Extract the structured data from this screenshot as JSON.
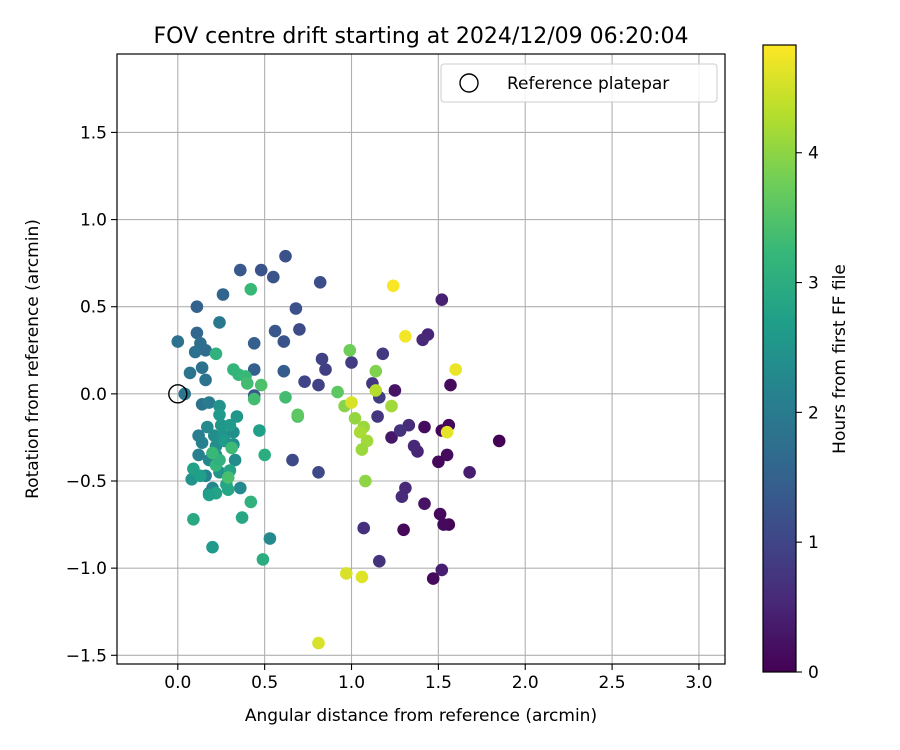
{
  "chart_data": {
    "type": "scatter",
    "title": "FOV centre drift starting at 2024/12/09 06:20:04",
    "xlabel": "Angular distance from reference (arcmin)",
    "ylabel": "Rotation from reference (arcmin)",
    "xlim": [
      -0.35,
      3.15
    ],
    "ylim": [
      -1.55,
      1.95
    ],
    "x_ticks": [
      0.0,
      0.5,
      1.0,
      1.5,
      2.0,
      2.5,
      3.0
    ],
    "x_tick_labels": [
      "0.0",
      "0.5",
      "1.0",
      "1.5",
      "2.0",
      "2.5",
      "3.0"
    ],
    "y_ticks": [
      -1.5,
      -1.0,
      -0.5,
      0.0,
      0.5,
      1.0,
      1.5
    ],
    "y_tick_labels": [
      "−1.5",
      "−1.0",
      "−0.5",
      "0.0",
      "0.5",
      "1.0",
      "1.5"
    ],
    "grid": true,
    "legend": {
      "placement": "top-right",
      "entries": [
        "Reference platepar"
      ]
    },
    "reference_point": {
      "x": 0.0,
      "y": 0.0,
      "label": "Reference platepar"
    },
    "colorbar": {
      "label": "Hours from first FF file",
      "min": 0,
      "max": 4.83,
      "ticks": [
        0,
        1,
        2,
        3,
        4
      ],
      "tick_labels": [
        "0",
        "1",
        "2",
        "3",
        "4"
      ],
      "colormap": "viridis"
    },
    "points_xyh": [
      [
        1.85,
        -0.27,
        0.02
      ],
      [
        1.52,
        -0.21,
        0.05
      ],
      [
        1.56,
        -0.18,
        0.08
      ],
      [
        1.5,
        -0.39,
        0.1
      ],
      [
        1.56,
        -0.75,
        0.05
      ],
      [
        1.51,
        -0.69,
        0.1
      ],
      [
        1.53,
        -0.75,
        0.12
      ],
      [
        1.47,
        -1.06,
        0.12
      ],
      [
        1.3,
        -0.78,
        0.1
      ],
      [
        1.55,
        -0.35,
        0.12
      ],
      [
        1.42,
        -0.19,
        0.15
      ],
      [
        1.57,
        0.05,
        0.15
      ],
      [
        1.42,
        -0.63,
        0.25
      ],
      [
        1.52,
        -1.01,
        0.4
      ],
      [
        1.68,
        -0.45,
        0.4
      ],
      [
        1.52,
        0.54,
        0.45
      ],
      [
        1.44,
        0.34,
        0.5
      ],
      [
        1.41,
        0.31,
        0.55
      ],
      [
        1.25,
        0.02,
        0.25
      ],
      [
        1.23,
        -0.25,
        0.3
      ],
      [
        1.29,
        -0.59,
        0.6
      ],
      [
        1.31,
        -0.54,
        0.55
      ],
      [
        1.38,
        -0.33,
        0.5
      ],
      [
        1.36,
        -0.3,
        0.55
      ],
      [
        1.33,
        -0.18,
        0.6
      ],
      [
        1.28,
        -0.21,
        0.7
      ],
      [
        1.07,
        -0.77,
        0.65
      ],
      [
        1.16,
        -0.96,
        0.7
      ],
      [
        1.15,
        -0.13,
        0.75
      ],
      [
        1.12,
        0.06,
        0.75
      ],
      [
        1.18,
        0.23,
        0.8
      ],
      [
        1.16,
        -0.02,
        0.85
      ],
      [
        1.0,
        0.18,
        0.85
      ],
      [
        0.85,
        0.14,
        0.9
      ],
      [
        0.83,
        0.2,
        0.95
      ],
      [
        0.81,
        0.05,
        0.95
      ],
      [
        0.73,
        0.07,
        1.0
      ],
      [
        0.66,
        -0.38,
        1.05
      ],
      [
        0.81,
        -0.45,
        1.05
      ],
      [
        0.7,
        0.37,
        1.1
      ],
      [
        0.82,
        0.64,
        1.15
      ],
      [
        0.68,
        0.49,
        1.2
      ],
      [
        0.62,
        0.79,
        1.2
      ],
      [
        0.55,
        0.67,
        1.25
      ],
      [
        0.48,
        0.71,
        1.25
      ],
      [
        0.36,
        0.71,
        1.35
      ],
      [
        0.56,
        0.36,
        1.3
      ],
      [
        0.61,
        0.3,
        1.25
      ],
      [
        0.44,
        0.29,
        1.45
      ],
      [
        0.61,
        0.13,
        1.4
      ],
      [
        0.44,
        0.14,
        1.45
      ],
      [
        0.44,
        -0.01,
        1.3
      ],
      [
        0.11,
        0.5,
        1.5
      ],
      [
        0.26,
        0.57,
        1.55
      ],
      [
        0.11,
        0.35,
        1.6
      ],
      [
        0.16,
        0.25,
        1.7
      ],
      [
        0.13,
        0.29,
        1.75
      ],
      [
        0.14,
        0.15,
        1.8
      ],
      [
        0.0,
        0.3,
        1.8
      ],
      [
        0.1,
        0.24,
        1.8
      ],
      [
        0.07,
        0.12,
        1.85
      ],
      [
        0.16,
        0.08,
        1.85
      ],
      [
        0.24,
        0.41,
        1.95
      ],
      [
        0.04,
        0.0,
        1.9
      ],
      [
        0.14,
        -0.06,
        1.85
      ],
      [
        0.18,
        -0.05,
        2.0
      ],
      [
        0.12,
        -0.24,
        2.05
      ],
      [
        0.12,
        -0.35,
        2.1
      ],
      [
        0.14,
        -0.28,
        2.1
      ],
      [
        0.16,
        -0.47,
        2.15
      ],
      [
        0.18,
        -0.57,
        2.15
      ],
      [
        0.2,
        -0.54,
        2.25
      ],
      [
        0.18,
        -0.38,
        2.25
      ],
      [
        0.17,
        -0.19,
        2.3
      ],
      [
        0.21,
        -0.24,
        2.35
      ],
      [
        0.22,
        -0.35,
        2.4
      ],
      [
        0.22,
        -0.3,
        2.4
      ],
      [
        0.24,
        -0.45,
        2.45
      ],
      [
        0.24,
        -0.07,
        2.45
      ],
      [
        0.26,
        -0.24,
        2.5
      ],
      [
        0.25,
        -0.18,
        2.55
      ],
      [
        0.27,
        -0.27,
        2.6
      ],
      [
        0.24,
        -0.12,
        2.6
      ],
      [
        0.32,
        -0.22,
        2.4
      ],
      [
        0.32,
        -0.29,
        2.4
      ],
      [
        0.33,
        -0.38,
        2.35
      ],
      [
        0.3,
        -0.18,
        2.6
      ],
      [
        0.34,
        -0.13,
        2.55
      ],
      [
        0.36,
        -0.54,
        2.3
      ],
      [
        0.53,
        -0.83,
        2.3
      ],
      [
        0.47,
        -0.21,
        2.7
      ],
      [
        0.3,
        -0.44,
        2.8
      ],
      [
        0.28,
        -0.52,
        2.8
      ],
      [
        0.29,
        -0.55,
        2.85
      ],
      [
        0.22,
        -0.57,
        2.8
      ],
      [
        0.18,
        -0.58,
        2.7
      ],
      [
        0.08,
        -0.49,
        2.5
      ],
      [
        0.09,
        -0.43,
        2.75
      ],
      [
        0.13,
        -0.47,
        2.7
      ],
      [
        0.09,
        -0.72,
        2.9
      ],
      [
        0.2,
        -0.88,
        2.6
      ],
      [
        0.37,
        -0.71,
        2.85
      ],
      [
        0.42,
        -0.62,
        3.1
      ],
      [
        0.49,
        -0.95,
        3.0
      ],
      [
        0.5,
        -0.35,
        3.0
      ],
      [
        0.22,
        -0.41,
        3.2
      ],
      [
        0.24,
        -0.38,
        3.1
      ],
      [
        0.2,
        -0.34,
        3.25
      ],
      [
        0.31,
        -0.31,
        3.3
      ],
      [
        0.29,
        -0.48,
        3.4
      ],
      [
        0.22,
        0.23,
        3.1
      ],
      [
        0.35,
        0.11,
        3.2
      ],
      [
        0.32,
        0.14,
        3.15
      ],
      [
        0.39,
        0.1,
        3.25
      ],
      [
        0.4,
        0.06,
        3.35
      ],
      [
        0.48,
        0.05,
        3.45
      ],
      [
        0.44,
        -0.03,
        3.35
      ],
      [
        0.42,
        0.6,
        3.25
      ],
      [
        0.62,
        -0.02,
        3.35
      ],
      [
        0.69,
        -0.13,
        3.45
      ],
      [
        0.69,
        -0.12,
        3.6
      ],
      [
        0.92,
        0.01,
        3.6
      ],
      [
        0.99,
        0.25,
        3.75
      ],
      [
        0.96,
        -0.07,
        3.95
      ],
      [
        1.02,
        -0.14,
        4.05
      ],
      [
        1.07,
        -0.19,
        4.1
      ],
      [
        1.09,
        -0.27,
        4.15
      ],
      [
        1.06,
        -0.32,
        4.1
      ],
      [
        1.08,
        -0.5,
        4.0
      ],
      [
        1.14,
        0.13,
        3.9
      ],
      [
        1.14,
        0.02,
        4.3
      ],
      [
        1.23,
        -0.07,
        4.15
      ],
      [
        1.05,
        -0.22,
        4.2
      ],
      [
        1.0,
        -0.05,
        4.55
      ],
      [
        0.97,
        -1.03,
        4.55
      ],
      [
        1.06,
        -1.05,
        4.6
      ],
      [
        0.81,
        -1.43,
        4.55
      ],
      [
        1.55,
        -0.22,
        4.65
      ],
      [
        1.6,
        0.14,
        4.7
      ],
      [
        1.31,
        0.33,
        4.75
      ],
      [
        1.24,
        0.62,
        4.8
      ]
    ]
  }
}
